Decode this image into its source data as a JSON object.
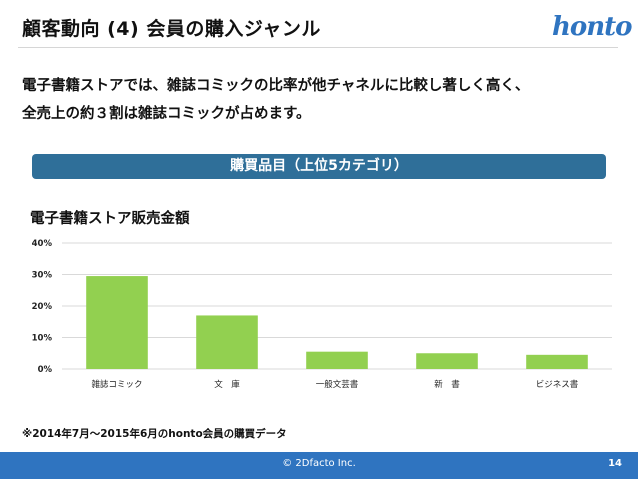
{
  "header": {
    "title": "顧客動向 (4) 会員の購入ジャンル",
    "logo_text": "honto"
  },
  "summary": {
    "line1": "電子書籍ストアでは、雑誌コミックの比率が他チャネルに比較し著しく高く、",
    "line2": "全売上の約３割は雑誌コミックが占めます。"
  },
  "banner": {
    "label": "購買品目（上位5カテゴリ）"
  },
  "chart_data": {
    "type": "bar",
    "title": "電子書籍ストア販売金額",
    "categories": [
      "雑誌コミック",
      "文　庫",
      "一般文芸書",
      "新　書",
      "ビジネス書"
    ],
    "values": [
      29.5,
      17,
      5.5,
      5,
      4.5
    ],
    "ylim": [
      0,
      40
    ],
    "yticks": [
      0,
      10,
      20,
      30,
      40
    ],
    "ytick_labels": [
      "0%",
      "10%",
      "20%",
      "30%",
      "40%"
    ],
    "grid": true,
    "bar_color": "#92d050",
    "grid_color": "#d9d9d9"
  },
  "note": "※2014年7月〜2015年6月のhonto会員の購買データ",
  "footer": {
    "copyright": "© 2Dfacto Inc.",
    "page_number": "14",
    "color": "#2f74c0"
  }
}
